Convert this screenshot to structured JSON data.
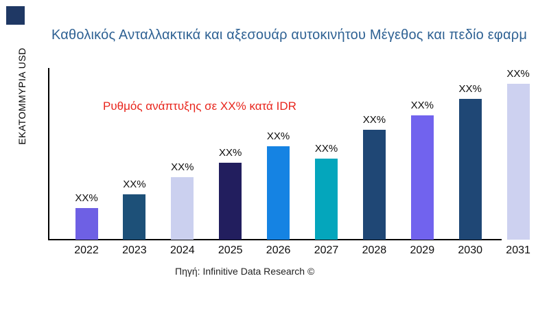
{
  "branding": {
    "corner_square_color": "#1f3864"
  },
  "header": {
    "title": "Καθολικός Ανταλλακτικά και αξεσουάρ αυτοκινήτου Μέγεθος και πεδίο εφαρμ",
    "title_color": "#2e6193"
  },
  "annotation": {
    "text": "Ρυθμός ανάπτυξης σε XX% κατά IDR",
    "color": "#e8251c"
  },
  "axes": {
    "y_label": "ΕΚΑΤΟΜΜΥΡΙΑ USD",
    "axis_color": "#000000"
  },
  "footer": {
    "source": "Πηγή: Infinitive Data Research ©"
  },
  "chart_data": {
    "type": "bar",
    "title": "Καθολικός Ανταλλακτικά και αξεσουάρ αυτοκινήτου Μέγεθος και πεδίο εφαρμογής",
    "xlabel": "",
    "ylabel": "ΕΚΑΤΟΜΜΥΡΙΑ USD",
    "categories": [
      "2022",
      "2023",
      "2024",
      "2025",
      "2026",
      "2027",
      "2028",
      "2029",
      "2030",
      "2031"
    ],
    "data_labels": [
      "XX%",
      "XX%",
      "XX%",
      "XX%",
      "XX%",
      "XX%",
      "XX%",
      "XX%",
      "XX%",
      "XX%"
    ],
    "values_relative": [
      46,
      66,
      91,
      112,
      136,
      118,
      160,
      181,
      205,
      227
    ],
    "values_note": "numeric values masked in source image as XX%; values_relative are drawn bar heights in px",
    "bar_colors": [
      "#6e60e4",
      "#1d5078",
      "#cbd0ef",
      "#221e5e",
      "#1583e3",
      "#04a6bc",
      "#1f4775",
      "#7163ee",
      "#1f4775",
      "#cdd1f0"
    ],
    "grid": false,
    "legend": false,
    "annotation": "Ρυθμός ανάπτυξης σε XX% κατά IDR"
  }
}
